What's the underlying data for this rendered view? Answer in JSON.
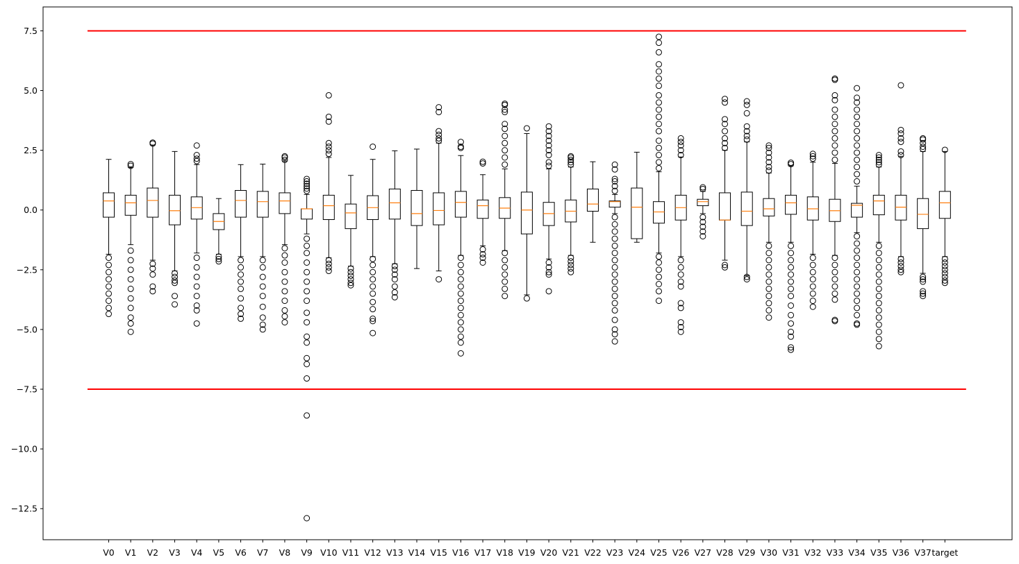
{
  "chart_data": {
    "type": "boxplot",
    "title": "",
    "xlabel": "",
    "ylabel": "",
    "ylim": [
      -13.8,
      8.5
    ],
    "yticks": [
      7.5,
      5.0,
      2.5,
      0.0,
      -2.5,
      -5.0,
      -7.5,
      -10.0,
      -12.5
    ],
    "ytick_labels": [
      "7.5",
      "5.0",
      "2.5",
      "0.0",
      "−2.5",
      "−5.0",
      "−7.5",
      "−10.0",
      "−12.5"
    ],
    "reference_lines": [
      7.5,
      -7.5
    ],
    "reference_line_color": "#ff0000",
    "median_color": "#ff7f0e",
    "grid": false,
    "boxes": [
      {
        "label": "V0",
        "q1": -0.3,
        "median": 0.38,
        "q3": 0.72,
        "whislo": -1.85,
        "whishi": 2.12,
        "fliers_lo": [
          -2.0,
          -2.3,
          -2.6,
          -2.9,
          -3.2,
          -3.5,
          -3.8,
          -4.1,
          -4.35
        ],
        "fliers_hi": []
      },
      {
        "label": "V1",
        "q1": -0.22,
        "median": 0.3,
        "q3": 0.62,
        "whislo": -1.45,
        "whishi": 1.78,
        "fliers_lo": [
          -1.7,
          -2.1,
          -2.5,
          -2.9,
          -3.3,
          -3.7,
          -4.1,
          -4.5,
          -4.75,
          -5.1
        ],
        "fliers_hi": [
          1.85,
          1.92
        ]
      },
      {
        "label": "V2",
        "q1": -0.3,
        "median": 0.4,
        "q3": 0.92,
        "whislo": -2.1,
        "whishi": 2.72,
        "fliers_lo": [
          -2.25,
          -2.45,
          -2.7,
          -3.2,
          -3.4
        ],
        "fliers_hi": [
          2.78,
          2.82
        ]
      },
      {
        "label": "V3",
        "q1": -0.62,
        "median": -0.03,
        "q3": 0.62,
        "whislo": -2.55,
        "whishi": 2.45,
        "fliers_lo": [
          -2.65,
          -2.8,
          -2.95,
          -3.05,
          -3.6,
          -3.95
        ],
        "fliers_hi": []
      },
      {
        "label": "V4",
        "q1": -0.38,
        "median": 0.1,
        "q3": 0.55,
        "whislo": -1.8,
        "whishi": 1.9,
        "fliers_lo": [
          -2.0,
          -2.4,
          -2.8,
          -3.2,
          -3.6,
          -4.0,
          -4.2,
          -4.75
        ],
        "fliers_hi": [
          2.05,
          2.15,
          2.3,
          2.7
        ]
      },
      {
        "label": "V5",
        "q1": -0.82,
        "median": -0.48,
        "q3": -0.15,
        "whislo": -1.85,
        "whishi": 0.48,
        "fliers_lo": [
          -1.95,
          -2.05,
          -2.15
        ],
        "fliers_hi": []
      },
      {
        "label": "V6",
        "q1": -0.3,
        "median": 0.4,
        "q3": 0.82,
        "whislo": -1.95,
        "whishi": 1.9,
        "fliers_lo": [
          -2.1,
          -2.4,
          -2.7,
          -3.0,
          -3.3,
          -3.7,
          -4.1,
          -4.35,
          -4.55
        ],
        "fliers_hi": []
      },
      {
        "label": "V7",
        "q1": -0.3,
        "median": 0.35,
        "q3": 0.78,
        "whislo": -1.95,
        "whishi": 1.92,
        "fliers_lo": [
          -2.1,
          -2.4,
          -2.8,
          -3.2,
          -3.6,
          -4.05,
          -4.5,
          -4.8,
          -5.0
        ],
        "fliers_hi": []
      },
      {
        "label": "V8",
        "q1": -0.15,
        "median": 0.38,
        "q3": 0.72,
        "whislo": -1.45,
        "whishi": 2.05,
        "fliers_lo": [
          -1.6,
          -1.9,
          -2.2,
          -2.6,
          -3.0,
          -3.4,
          -3.8,
          -4.2,
          -4.45,
          -4.7
        ],
        "fliers_hi": [
          2.1,
          2.2,
          2.25
        ]
      },
      {
        "label": "V9",
        "q1": -0.38,
        "median": 0.05,
        "q3": 0.05,
        "whislo": -1.0,
        "whishi": 0.65,
        "fliers_lo": [
          -1.2,
          -1.5,
          -1.8,
          -2.2,
          -2.6,
          -3.0,
          -3.4,
          -3.8,
          -4.3,
          -4.7,
          -5.3,
          -5.55,
          -6.2,
          -6.45,
          -7.05,
          -8.6,
          -12.9
        ],
        "fliers_hi": [
          0.8,
          0.9,
          1.0,
          1.1,
          1.2,
          1.3
        ]
      },
      {
        "label": "V10",
        "q1": -0.4,
        "median": 0.18,
        "q3": 0.62,
        "whislo": -2.0,
        "whishi": 2.2,
        "fliers_lo": [
          -2.1,
          -2.25,
          -2.4,
          -2.55
        ],
        "fliers_hi": [
          2.35,
          2.5,
          2.65,
          2.8,
          3.7,
          3.9,
          4.8
        ]
      },
      {
        "label": "V11",
        "q1": -0.78,
        "median": -0.12,
        "q3": 0.25,
        "whislo": -2.35,
        "whishi": 1.45,
        "fliers_lo": [
          -2.45,
          -2.6,
          -2.75,
          -2.9,
          -3.05,
          -3.15
        ],
        "fliers_hi": []
      },
      {
        "label": "V12",
        "q1": -0.4,
        "median": 0.1,
        "q3": 0.6,
        "whislo": -1.95,
        "whishi": 2.12,
        "fliers_lo": [
          -2.05,
          -2.3,
          -2.6,
          -2.9,
          -3.2,
          -3.5,
          -3.85,
          -4.15,
          -4.55,
          -4.65,
          -5.15
        ],
        "fliers_hi": [
          2.65
        ]
      },
      {
        "label": "V13",
        "q1": -0.38,
        "median": 0.3,
        "q3": 0.88,
        "whislo": -2.25,
        "whishi": 2.48,
        "fliers_lo": [
          -2.35,
          -2.5,
          -2.7,
          -2.9,
          -3.2,
          -3.45,
          -3.65
        ],
        "fliers_hi": []
      },
      {
        "label": "V14",
        "q1": -0.65,
        "median": -0.15,
        "q3": 0.82,
        "whislo": -2.45,
        "whishi": 2.55,
        "fliers_lo": [],
        "fliers_hi": []
      },
      {
        "label": "V15",
        "q1": -0.62,
        "median": -0.02,
        "q3": 0.72,
        "whislo": -2.55,
        "whishi": 2.8,
        "fliers_lo": [
          -2.9
        ],
        "fliers_hi": [
          2.9,
          3.0,
          3.15,
          3.3,
          4.1,
          4.3
        ]
      },
      {
        "label": "V16",
        "q1": -0.3,
        "median": 0.32,
        "q3": 0.78,
        "whislo": -1.9,
        "whishi": 2.28,
        "fliers_lo": [
          -2.0,
          -2.3,
          -2.6,
          -2.9,
          -3.2,
          -3.5,
          -3.8,
          -4.1,
          -4.4,
          -4.7,
          -5.0,
          -5.3,
          -5.55,
          -6.0
        ],
        "fliers_hi": [
          2.6,
          2.65,
          2.85
        ]
      },
      {
        "label": "V17",
        "q1": -0.35,
        "median": 0.18,
        "q3": 0.42,
        "whislo": -1.5,
        "whishi": 1.48,
        "fliers_lo": [
          -1.65,
          -1.85,
          -2.0,
          -2.2
        ],
        "fliers_hi": [
          1.95,
          2.02
        ]
      },
      {
        "label": "V18",
        "q1": -0.35,
        "median": 0.08,
        "q3": 0.52,
        "whislo": -1.7,
        "whishi": 1.72,
        "fliers_lo": [
          -1.8,
          -2.1,
          -2.4,
          -2.7,
          -3.0,
          -3.3,
          -3.6
        ],
        "fliers_hi": [
          1.9,
          2.2,
          2.5,
          2.8,
          3.1,
          3.4,
          3.6,
          4.1,
          4.2,
          4.4,
          4.45
        ]
      },
      {
        "label": "V19",
        "q1": -1.0,
        "median": 0.0,
        "q3": 0.75,
        "whislo": -3.55,
        "whishi": 3.2,
        "fliers_lo": [
          -3.7
        ],
        "fliers_hi": [
          3.42
        ]
      },
      {
        "label": "V20",
        "q1": -0.65,
        "median": -0.15,
        "q3": 0.32,
        "whislo": -2.05,
        "whishi": 1.72,
        "fliers_lo": [
          -2.2,
          -2.4,
          -2.6,
          -2.7,
          -3.4
        ],
        "fliers_hi": [
          1.85,
          2.0,
          2.3,
          2.5,
          2.7,
          2.9,
          3.1,
          3.3,
          3.5
        ]
      },
      {
        "label": "V21",
        "q1": -0.5,
        "median": -0.05,
        "q3": 0.42,
        "whislo": -1.9,
        "whishi": 1.8,
        "fliers_lo": [
          -2.0,
          -2.15,
          -2.3,
          -2.45,
          -2.6
        ],
        "fliers_hi": [
          1.9,
          2.0,
          2.1,
          2.2,
          2.25
        ]
      },
      {
        "label": "V22",
        "q1": -0.05,
        "median": 0.25,
        "q3": 0.88,
        "whislo": -1.35,
        "whishi": 2.02,
        "fliers_lo": [],
        "fliers_hi": []
      },
      {
        "label": "V23",
        "q1": 0.12,
        "median": 0.35,
        "q3": 0.38,
        "whislo": -0.15,
        "whishi": 0.65,
        "fliers_lo": [
          -0.3,
          -0.6,
          -0.9,
          -1.2,
          -1.5,
          -1.8,
          -2.1,
          -2.4,
          -2.7,
          -3.0,
          -3.3,
          -3.6,
          -3.9,
          -4.2,
          -4.6,
          -5.0,
          -5.2,
          -5.5
        ],
        "fliers_hi": [
          0.8,
          1.0,
          1.2,
          1.3,
          1.7,
          1.9
        ]
      },
      {
        "label": "V24",
        "q1": -1.2,
        "median": 0.12,
        "q3": 0.92,
        "whislo": -1.35,
        "whishi": 2.42,
        "fliers_lo": [],
        "fliers_hi": []
      },
      {
        "label": "V25",
        "q1": -0.55,
        "median": -0.08,
        "q3": 0.35,
        "whislo": -1.8,
        "whishi": 1.6,
        "fliers_lo": [
          -1.95,
          -2.2,
          -2.5,
          -2.8,
          -3.1,
          -3.4,
          -3.8
        ],
        "fliers_hi": [
          1.75,
          2.0,
          2.3,
          2.6,
          2.9,
          3.3,
          3.6,
          3.9,
          4.2,
          4.5,
          4.8,
          5.2,
          5.5,
          5.8,
          6.1,
          6.6,
          7.0,
          7.25
        ]
      },
      {
        "label": "V26",
        "q1": -0.42,
        "median": 0.1,
        "q3": 0.62,
        "whislo": -1.95,
        "whishi": 2.22,
        "fliers_lo": [
          -2.1,
          -2.4,
          -2.7,
          -3.0,
          -3.2,
          -3.9,
          -4.1,
          -4.7,
          -4.9,
          -5.1
        ],
        "fliers_hi": [
          2.3,
          2.5,
          2.7,
          2.85,
          3.0
        ]
      },
      {
        "label": "V27",
        "q1": 0.18,
        "median": 0.35,
        "q3": 0.45,
        "whislo": -0.15,
        "whishi": 0.78,
        "fliers_lo": [
          -0.3,
          -0.5,
          -0.7,
          -0.9,
          -1.1
        ],
        "fliers_hi": [
          0.88,
          0.95
        ]
      },
      {
        "label": "V28",
        "q1": -0.42,
        "median": -0.42,
        "q3": 0.72,
        "whislo": -2.1,
        "whishi": 2.5,
        "fliers_lo": [
          -2.3,
          -2.4
        ],
        "fliers_hi": [
          2.6,
          2.8,
          3.0,
          3.3,
          3.6,
          3.8,
          4.5,
          4.65
        ]
      },
      {
        "label": "V29",
        "q1": -0.65,
        "median": -0.05,
        "q3": 0.75,
        "whislo": -2.75,
        "whishi": 2.85,
        "fliers_lo": [
          -2.8,
          -2.9
        ],
        "fliers_hi": [
          2.95,
          3.1,
          3.3,
          3.5,
          4.05,
          4.4,
          4.55
        ]
      },
      {
        "label": "V30",
        "q1": -0.25,
        "median": 0.05,
        "q3": 0.48,
        "whislo": -1.35,
        "whishi": 1.55,
        "fliers_lo": [
          -1.5,
          -1.8,
          -2.1,
          -2.4,
          -2.7,
          -3.0,
          -3.3,
          -3.6,
          -3.9,
          -4.2,
          -4.5
        ],
        "fliers_hi": [
          1.65,
          1.8,
          2.0,
          2.2,
          2.4,
          2.6,
          2.7
        ]
      },
      {
        "label": "V31",
        "q1": -0.18,
        "median": 0.3,
        "q3": 0.62,
        "whislo": -1.35,
        "whishi": 1.85,
        "fliers_lo": [
          -1.5,
          -1.8,
          -2.1,
          -2.4,
          -2.7,
          -3.0,
          -3.3,
          -3.6,
          -4.0,
          -4.4,
          -4.75,
          -5.1,
          -5.3,
          -5.75,
          -5.85
        ],
        "fliers_hi": [
          1.92,
          1.98
        ]
      },
      {
        "label": "V32",
        "q1": -0.42,
        "median": 0.05,
        "q3": 0.55,
        "whislo": -1.85,
        "whishi": 2.0,
        "fliers_lo": [
          -2.0,
          -2.3,
          -2.6,
          -2.9,
          -3.2,
          -3.5,
          -3.8,
          -4.05
        ],
        "fliers_hi": [
          2.15,
          2.25,
          2.35
        ]
      },
      {
        "label": "V33",
        "q1": -0.48,
        "median": -0.03,
        "q3": 0.45,
        "whislo": -1.9,
        "whishi": 1.95,
        "fliers_lo": [
          -2.0,
          -2.3,
          -2.6,
          -2.9,
          -3.2,
          -3.5,
          -3.75,
          -4.6,
          -4.65
        ],
        "fliers_hi": [
          2.1,
          2.4,
          2.7,
          3.0,
          3.3,
          3.6,
          3.9,
          4.2,
          4.6,
          4.8,
          5.45,
          5.5
        ]
      },
      {
        "label": "V34",
        "q1": -0.3,
        "median": 0.2,
        "q3": 0.28,
        "whislo": -0.95,
        "whishi": 1.0,
        "fliers_lo": [
          -1.1,
          -1.4,
          -1.7,
          -2.0,
          -2.3,
          -2.6,
          -2.9,
          -3.2,
          -3.5,
          -3.8,
          -4.1,
          -4.4,
          -4.75,
          -4.8
        ],
        "fliers_hi": [
          1.2,
          1.5,
          1.8,
          2.1,
          2.4,
          2.7,
          3.0,
          3.3,
          3.6,
          3.9,
          4.2,
          4.5,
          4.7,
          5.1
        ]
      },
      {
        "label": "V35",
        "q1": -0.2,
        "median": 0.38,
        "q3": 0.62,
        "whislo": -1.35,
        "whishi": 1.8,
        "fliers_lo": [
          -1.5,
          -1.8,
          -2.1,
          -2.4,
          -2.7,
          -3.0,
          -3.3,
          -3.6,
          -3.9,
          -4.2,
          -4.5,
          -4.8,
          -5.1,
          -5.4,
          -5.7
        ],
        "fliers_hi": [
          1.9,
          2.0,
          2.1,
          2.2,
          2.3
        ]
      },
      {
        "label": "V36",
        "q1": -0.42,
        "median": 0.12,
        "q3": 0.62,
        "whislo": -1.95,
        "whishi": 2.25,
        "fliers_lo": [
          -2.05,
          -2.2,
          -2.35,
          -2.5,
          -2.6
        ],
        "fliers_hi": [
          2.3,
          2.45,
          2.85,
          3.0,
          3.2,
          3.35,
          5.22
        ]
      },
      {
        "label": "V37",
        "q1": -0.78,
        "median": -0.18,
        "q3": 0.48,
        "whislo": -2.65,
        "whishi": 2.45,
        "fliers_lo": [
          -2.8,
          -2.9,
          -3.0,
          -3.4,
          -3.5,
          -3.6
        ],
        "fliers_hi": [
          2.55,
          2.65,
          2.8,
          2.95,
          3.0
        ]
      },
      {
        "label": "target",
        "q1": -0.35,
        "median": 0.3,
        "q3": 0.78,
        "whislo": -1.95,
        "whishi": 2.45,
        "fliers_lo": [
          -2.05,
          -2.2,
          -2.35,
          -2.5,
          -2.65,
          -2.8,
          -2.95,
          -3.05
        ],
        "fliers_hi": [
          2.52
        ]
      }
    ]
  }
}
